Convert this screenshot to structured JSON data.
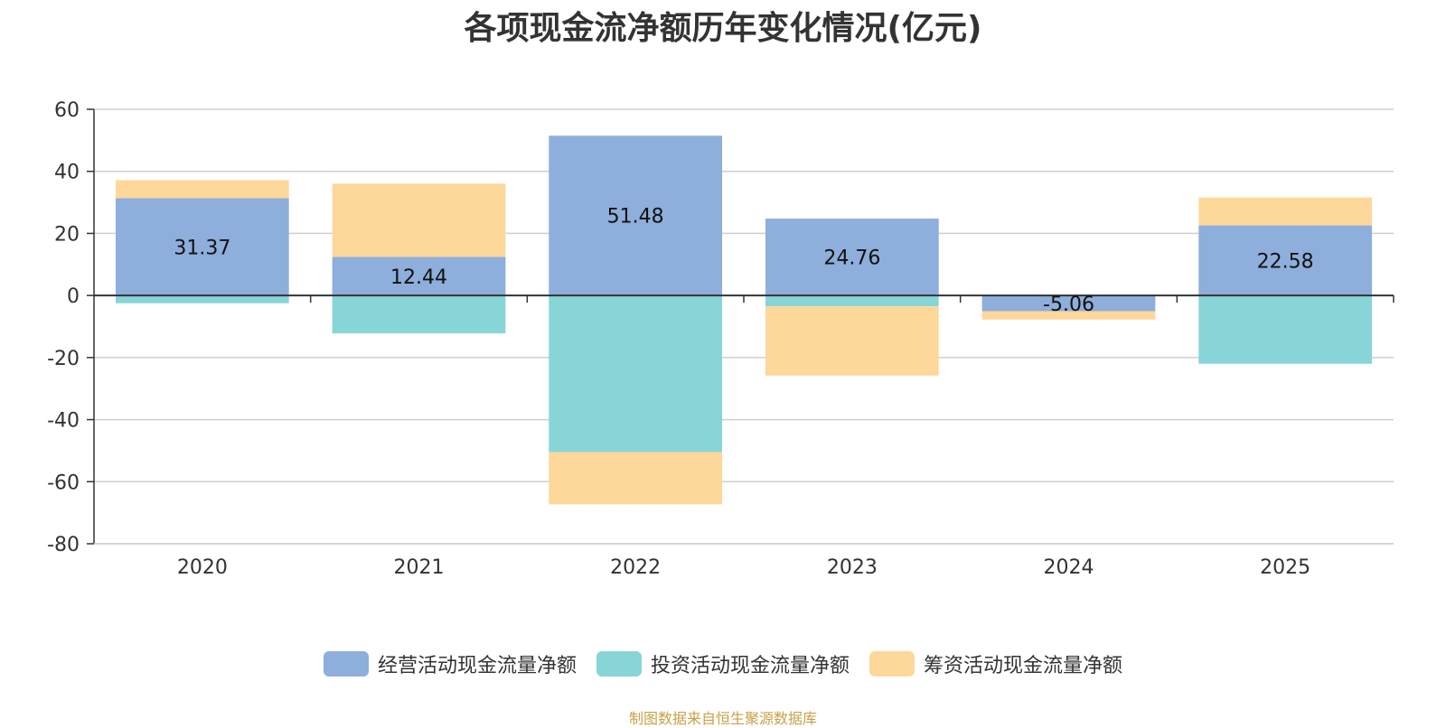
{
  "chart_data": {
    "type": "bar",
    "stacked": true,
    "title": "各项现金流净额历年变化情况(亿元)",
    "categories": [
      "2020",
      "2021",
      "2022",
      "2023",
      "2024",
      "2025"
    ],
    "series": [
      {
        "name": "经营活动现金流量净额",
        "color": "#8eaedb",
        "values": [
          31.37,
          12.44,
          51.48,
          24.76,
          -5.06,
          22.58
        ]
      },
      {
        "name": "投资活动现金流量净额",
        "color": "#88d5d8",
        "values": [
          -2.5,
          -12.2,
          -50.5,
          -3.5,
          0,
          -22.0
        ]
      },
      {
        "name": "筹资活动现金流量净额",
        "color": "#fdd89a",
        "values": [
          5.8,
          23.6,
          -16.8,
          -22.3,
          -2.7,
          9.0
        ]
      }
    ],
    "data_labels": [
      "31.37",
      "12.44",
      "51.48",
      "24.76",
      "-5.06",
      "22.58"
    ],
    "ylim": [
      -80,
      60
    ],
    "yticks": [
      60,
      40,
      20,
      0,
      -20,
      -40,
      -60,
      -80
    ],
    "xlabel": "",
    "ylabel": "",
    "grid": true,
    "legend_position": "bottom"
  },
  "source_note": "制图数据来自恒生聚源数据库"
}
